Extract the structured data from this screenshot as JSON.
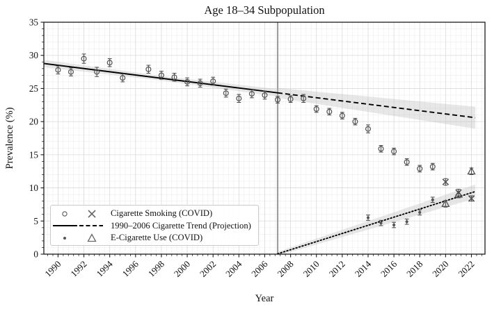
{
  "figure": {
    "title": "Age 18–34 Subpopulation",
    "xlabel": "Year",
    "ylabel": "Prevalence (%)"
  },
  "chart_data": {
    "type": "scatter",
    "title": "Age 18–34 Subpopulation",
    "xlabel": "Year",
    "ylabel": "Prevalence (%)",
    "xlim": [
      1988.9,
      2023.05
    ],
    "ylim": [
      0,
      35
    ],
    "xticks": [
      1990,
      1992,
      1994,
      1996,
      1998,
      2000,
      2002,
      2004,
      2006,
      2008,
      2010,
      2012,
      2014,
      2016,
      2018,
      2020,
      2022
    ],
    "yticks": [
      0,
      5,
      10,
      15,
      20,
      25,
      30,
      35
    ],
    "grid": "on",
    "vline_year": 2007,
    "legend_position": "lower-left",
    "legend": [
      {
        "label": "Cigarette Smoking (COVID)",
        "markers": [
          "open-circle",
          "x"
        ]
      },
      {
        "label": "1990–2006 Cigarette Trend (Projection)",
        "markers": [
          "solid-line",
          "dashed-line"
        ]
      },
      {
        "label": "E-Cigarette Use (COVID)",
        "markers": [
          "dot",
          "open-triangle"
        ]
      }
    ],
    "series": [
      {
        "name": "Cigarette Smoking",
        "marker": "open-circle",
        "points": [
          [
            1990,
            27.8,
            0.6
          ],
          [
            1991,
            27.5,
            0.6
          ],
          [
            1992,
            29.5,
            0.7
          ],
          [
            1993,
            27.5,
            0.7
          ],
          [
            1994,
            28.9,
            0.6
          ],
          [
            1995,
            26.6,
            0.6
          ],
          [
            1997,
            27.9,
            0.6
          ],
          [
            1998,
            27.0,
            0.6
          ],
          [
            1999,
            26.7,
            0.6
          ],
          [
            2000,
            26.0,
            0.6
          ],
          [
            2001,
            25.8,
            0.6
          ],
          [
            2002,
            26.1,
            0.6
          ],
          [
            2003,
            24.3,
            0.6
          ],
          [
            2004,
            23.5,
            0.6
          ],
          [
            2005,
            24.2,
            0.6
          ],
          [
            2006,
            24.0,
            0.6
          ],
          [
            2007,
            23.3,
            0.5
          ],
          [
            2008,
            23.4,
            0.5
          ],
          [
            2009,
            23.5,
            0.6
          ],
          [
            2010,
            21.9,
            0.5
          ],
          [
            2011,
            21.5,
            0.5
          ],
          [
            2012,
            20.9,
            0.5
          ],
          [
            2013,
            20.0,
            0.5
          ],
          [
            2014,
            18.9,
            0.6
          ],
          [
            2015,
            15.9,
            0.5
          ],
          [
            2016,
            15.5,
            0.5
          ],
          [
            2017,
            13.9,
            0.5
          ],
          [
            2018,
            12.9,
            0.5
          ],
          [
            2019,
            13.2,
            0.5
          ]
        ]
      },
      {
        "name": "Cigarette Smoking (COVID)",
        "marker": "x",
        "points": [
          [
            2020,
            10.9,
            0.5
          ],
          [
            2021,
            9.3,
            0.5
          ],
          [
            2022,
            8.4,
            0.4
          ]
        ]
      },
      {
        "name": "E-Cigarette Use",
        "marker": "dot",
        "points": [
          [
            2014,
            5.5,
            0.4
          ],
          [
            2015,
            4.7,
            0.4
          ],
          [
            2016,
            4.4,
            0.4
          ],
          [
            2017,
            4.9,
            0.4
          ],
          [
            2018,
            6.3,
            0.4
          ],
          [
            2019,
            8.2,
            0.4
          ]
        ]
      },
      {
        "name": "E-Cigarette Use (COVID)",
        "marker": "open-triangle",
        "points": [
          [
            2020,
            7.6,
            0.5
          ],
          [
            2021,
            9.0,
            0.5
          ],
          [
            2022,
            12.5,
            0.5
          ]
        ]
      }
    ],
    "trend_lines": [
      {
        "name": "1990–2006 Cigarette Trend",
        "style": "solid",
        "x": [
          1988.9,
          2007
        ],
        "y": [
          28.77,
          24.34
        ],
        "band": {
          "x": [
            1988.9,
            1998,
            2007
          ],
          "halfwidth": [
            0.55,
            0.35,
            0.55
          ]
        }
      },
      {
        "name": "Projection",
        "style": "dashed",
        "x": [
          2007,
          2022.3
        ],
        "y": [
          24.34,
          20.59
        ],
        "band": {
          "x": [
            2007,
            2022.3
          ],
          "halfwidth": [
            0.75,
            1.65
          ]
        }
      },
      {
        "name": "E-Cigarette Trend",
        "style": "dotted",
        "x": [
          2007,
          2022.3
        ],
        "y": [
          0.05,
          9.45
        ],
        "band": {
          "x": [
            2007,
            2022.3
          ],
          "halfwidth": [
            0.3,
            1.05
          ]
        }
      }
    ],
    "colors": {
      "trend": "#000000",
      "marker": "#555555",
      "errorbar": "#444444",
      "band": "#bbbbbb",
      "vline": "#9e9e9e",
      "grid_major": "#d9d9d9",
      "grid_minor": "#efefef",
      "spine": "#1a1a1a"
    }
  }
}
